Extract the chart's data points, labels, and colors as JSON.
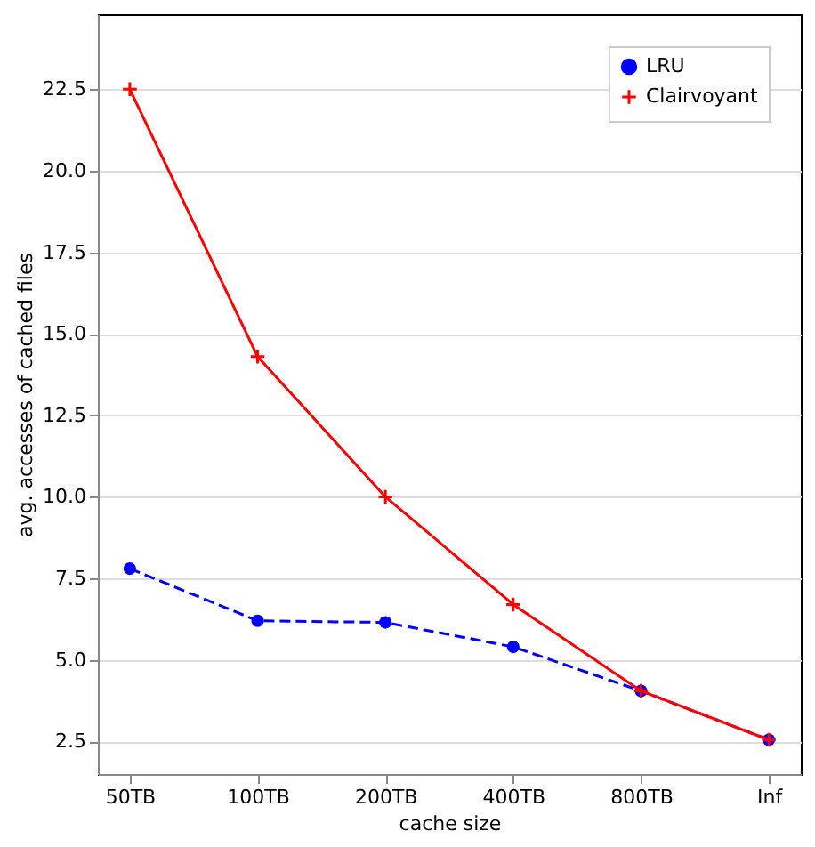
{
  "chart_data": {
    "type": "line",
    "xlabel": "cache size",
    "ylabel": "avg. accesses of cached files",
    "categories": [
      "50TB",
      "100TB",
      "200TB",
      "400TB",
      "800TB",
      "Inf"
    ],
    "series": [
      {
        "name": "LRU",
        "color": "#0000ff",
        "values": [
          7.8,
          6.2,
          6.15,
          5.4,
          4.05,
          2.55
        ],
        "marker": "circle",
        "line_style": "dashed"
      },
      {
        "name": "Clairvoyant",
        "color": "#ff0000",
        "values": [
          22.5,
          14.3,
          10.0,
          6.7,
          4.05,
          2.55
        ],
        "marker": "cross",
        "line_style": "solid"
      }
    ],
    "ylim": [
      1.5,
      24.8
    ],
    "yticks": [
      2.5,
      {
        "value": 5,
        "label": "5.0"
      },
      7.5,
      {
        "value": 10,
        "label": "10.0"
      },
      12.5,
      {
        "value": 15,
        "label": "15.0"
      },
      17.5,
      {
        "value": 20,
        "label": "20.0"
      },
      22.5
    ],
    "grid": "y",
    "legend": "top right"
  }
}
